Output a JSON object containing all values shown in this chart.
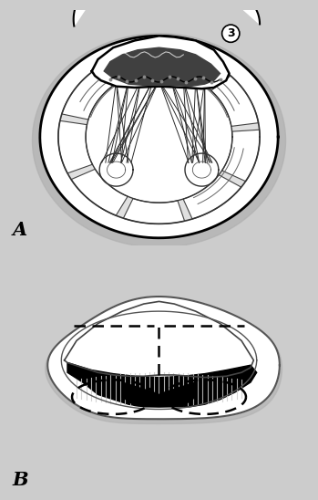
{
  "bg_color": "#cccccc",
  "label_A": "A",
  "label_B": "B",
  "label_fontsize": 15,
  "label_fontweight": "bold"
}
